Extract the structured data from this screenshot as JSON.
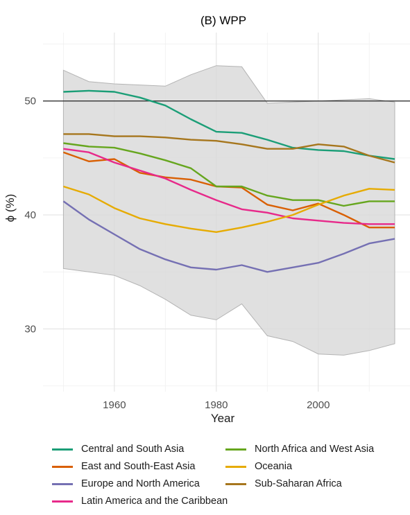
{
  "chart_data": {
    "type": "line",
    "title": "(B) WPP",
    "xlabel": "Year",
    "ylabel": "ϕ (%)",
    "xlim": [
      1946,
      2018
    ],
    "ylim": [
      24.5,
      56
    ],
    "x_ticks": [
      1960,
      1980,
      2000
    ],
    "y_ticks": [
      30,
      40,
      50
    ],
    "grid": true,
    "reference_line": 50,
    "x": [
      1950,
      1955,
      1960,
      1965,
      1970,
      1975,
      1980,
      1985,
      1990,
      1995,
      2000,
      2005,
      2010,
      2015
    ],
    "band": {
      "upper": [
        52.7,
        51.7,
        51.5,
        51.4,
        51.3,
        52.3,
        53.1,
        53.0,
        49.8,
        49.9,
        50.0,
        50.1,
        50.2,
        49.9
      ],
      "lower": [
        35.3,
        35.0,
        34.7,
        33.8,
        32.6,
        31.2,
        30.8,
        32.2,
        29.4,
        28.9,
        27.8,
        27.7,
        28.1,
        28.7
      ]
    },
    "series": [
      {
        "name": "Central and South Asia",
        "color": "#1b9e77",
        "values": [
          50.8,
          50.9,
          50.8,
          50.3,
          49.6,
          48.4,
          47.3,
          47.2,
          46.6,
          45.9,
          45.7,
          45.6,
          45.2,
          44.9
        ]
      },
      {
        "name": "East and South-East Asia",
        "color": "#d95f02",
        "values": [
          45.5,
          44.7,
          44.9,
          43.7,
          43.3,
          43.1,
          42.5,
          42.4,
          40.9,
          40.4,
          41.0,
          40.0,
          38.9,
          38.9
        ]
      },
      {
        "name": "Europe and North America",
        "color": "#7570b3",
        "values": [
          41.2,
          39.6,
          38.3,
          37.0,
          36.1,
          35.4,
          35.2,
          35.6,
          35.0,
          35.4,
          35.8,
          36.6,
          37.5,
          37.9
        ]
      },
      {
        "name": "Latin America and the Caribbean",
        "color": "#e7298a",
        "values": [
          45.8,
          45.5,
          44.6,
          43.9,
          43.2,
          42.2,
          41.3,
          40.5,
          40.2,
          39.7,
          39.5,
          39.3,
          39.2,
          39.2
        ]
      },
      {
        "name": "North Africa and West Asia",
        "color": "#66a61e",
        "values": [
          46.3,
          46.0,
          45.9,
          45.4,
          44.8,
          44.1,
          42.5,
          42.5,
          41.7,
          41.3,
          41.3,
          40.8,
          41.2,
          41.2
        ]
      },
      {
        "name": "Oceania",
        "color": "#e6ab02",
        "values": [
          42.5,
          41.8,
          40.6,
          39.7,
          39.2,
          38.8,
          38.5,
          38.9,
          39.4,
          40.0,
          40.9,
          41.7,
          42.3,
          42.2
        ]
      },
      {
        "name": "Sub-Saharan Africa",
        "color": "#a6761d",
        "values": [
          47.1,
          47.1,
          46.9,
          46.9,
          46.8,
          46.6,
          46.5,
          46.2,
          45.8,
          45.8,
          46.2,
          46.0,
          45.2,
          44.6
        ]
      }
    ],
    "legend_position": "bottom"
  },
  "legend": [
    {
      "label": "Central and South Asia",
      "color": "#1b9e77"
    },
    {
      "label": "North Africa and West Asia",
      "color": "#66a61e"
    },
    {
      "label": "East and South-East Asia",
      "color": "#d95f02"
    },
    {
      "label": "Oceania",
      "color": "#e6ab02"
    },
    {
      "label": "Europe and North America",
      "color": "#7570b3"
    },
    {
      "label": "Sub-Saharan Africa",
      "color": "#a6761d"
    },
    {
      "label": "Latin America and the Caribbean",
      "color": "#e7298a"
    }
  ]
}
